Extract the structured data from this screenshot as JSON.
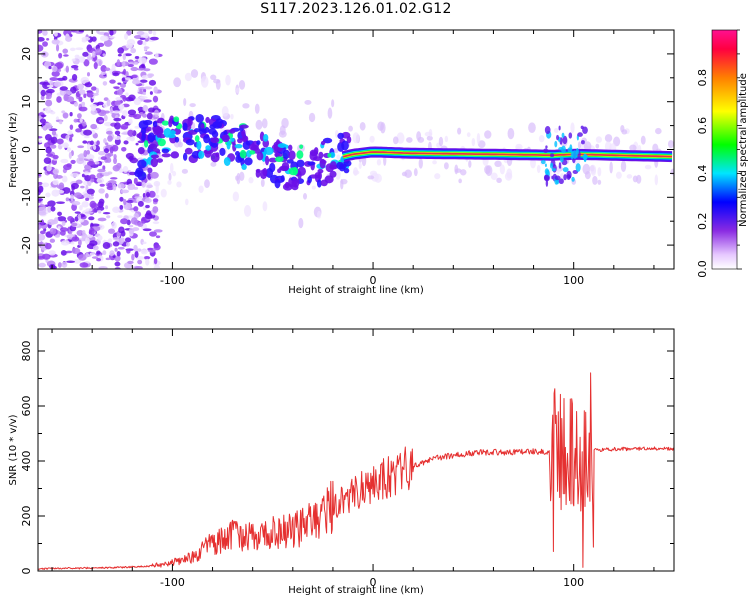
{
  "page": {
    "title": "S117.2023.126.01.02.G12"
  },
  "colors": {
    "snr_line": "#e53030",
    "ridge": "#e8304a",
    "scatter": "#7a1cf0",
    "scatter_light": "#c9a8f5",
    "axis": "#000000"
  },
  "chart_data": [
    {
      "id": "spectrogram",
      "type": "heatmap",
      "title": "S117.2023.126.01.02.G12",
      "xlabel": "Height of straight line (km)",
      "ylabel": "Frequency (Hz)",
      "xlim": [
        -167,
        150
      ],
      "ylim": [
        -25,
        25
      ],
      "xticks": [
        -100,
        0,
        100
      ],
      "yticks": [
        -20,
        -10,
        0,
        10,
        20
      ],
      "colorbar": {
        "label": "Normalized spectral amplitude",
        "range": [
          0,
          1
        ],
        "ticks": [
          0.0,
          0.2,
          0.4,
          0.6,
          0.8
        ],
        "colormap": [
          "#ffffff",
          "#8a2be2",
          "#0000ff",
          "#00e5ff",
          "#00ff00",
          "#ffff00",
          "#ff8000",
          "#ff0040"
        ]
      },
      "ridge": [
        {
          "x": -115,
          "y": 1
        },
        {
          "x": -100,
          "y": 2
        },
        {
          "x": -85,
          "y": 2.5
        },
        {
          "x": -70,
          "y": 1.5
        },
        {
          "x": -55,
          "y": -1.5
        },
        {
          "x": -42,
          "y": -3.5
        },
        {
          "x": -30,
          "y": -4
        },
        {
          "x": -20,
          "y": -2
        },
        {
          "x": -10,
          "y": -1
        },
        {
          "x": 0,
          "y": -0.5
        },
        {
          "x": 20,
          "y": -0.8
        },
        {
          "x": 60,
          "y": -1
        },
        {
          "x": 90,
          "y": -1.2
        },
        {
          "x": 100,
          "y": -1
        },
        {
          "x": 130,
          "y": -1.3
        },
        {
          "x": 150,
          "y": -1.5
        }
      ]
    },
    {
      "id": "snr",
      "type": "line",
      "xlabel": "Height of straight line (km)",
      "ylabel": "SNR (10 * v/v)",
      "xlim": [
        -167,
        150
      ],
      "ylim": [
        0,
        880
      ],
      "xticks": [
        -100,
        0,
        100
      ],
      "yticks": [
        0,
        200,
        400,
        600,
        800
      ],
      "series": [
        {
          "color": "#e53030",
          "x": [
            -167,
            -150,
            -130,
            -110,
            -100,
            -90,
            -80,
            -70,
            -60,
            -50,
            -40,
            -30,
            -20,
            -10,
            0,
            10,
            20,
            30,
            40,
            50,
            60,
            70,
            80,
            90,
            100,
            105,
            110,
            120,
            130,
            140,
            150
          ],
          "y": [
            8,
            10,
            12,
            18,
            30,
            50,
            100,
            130,
            120,
            140,
            150,
            175,
            240,
            280,
            320,
            350,
            380,
            410,
            420,
            430,
            432,
            432,
            435,
            430,
            430,
            420,
            440,
            443,
            445,
            445,
            445
          ]
        }
      ]
    }
  ]
}
